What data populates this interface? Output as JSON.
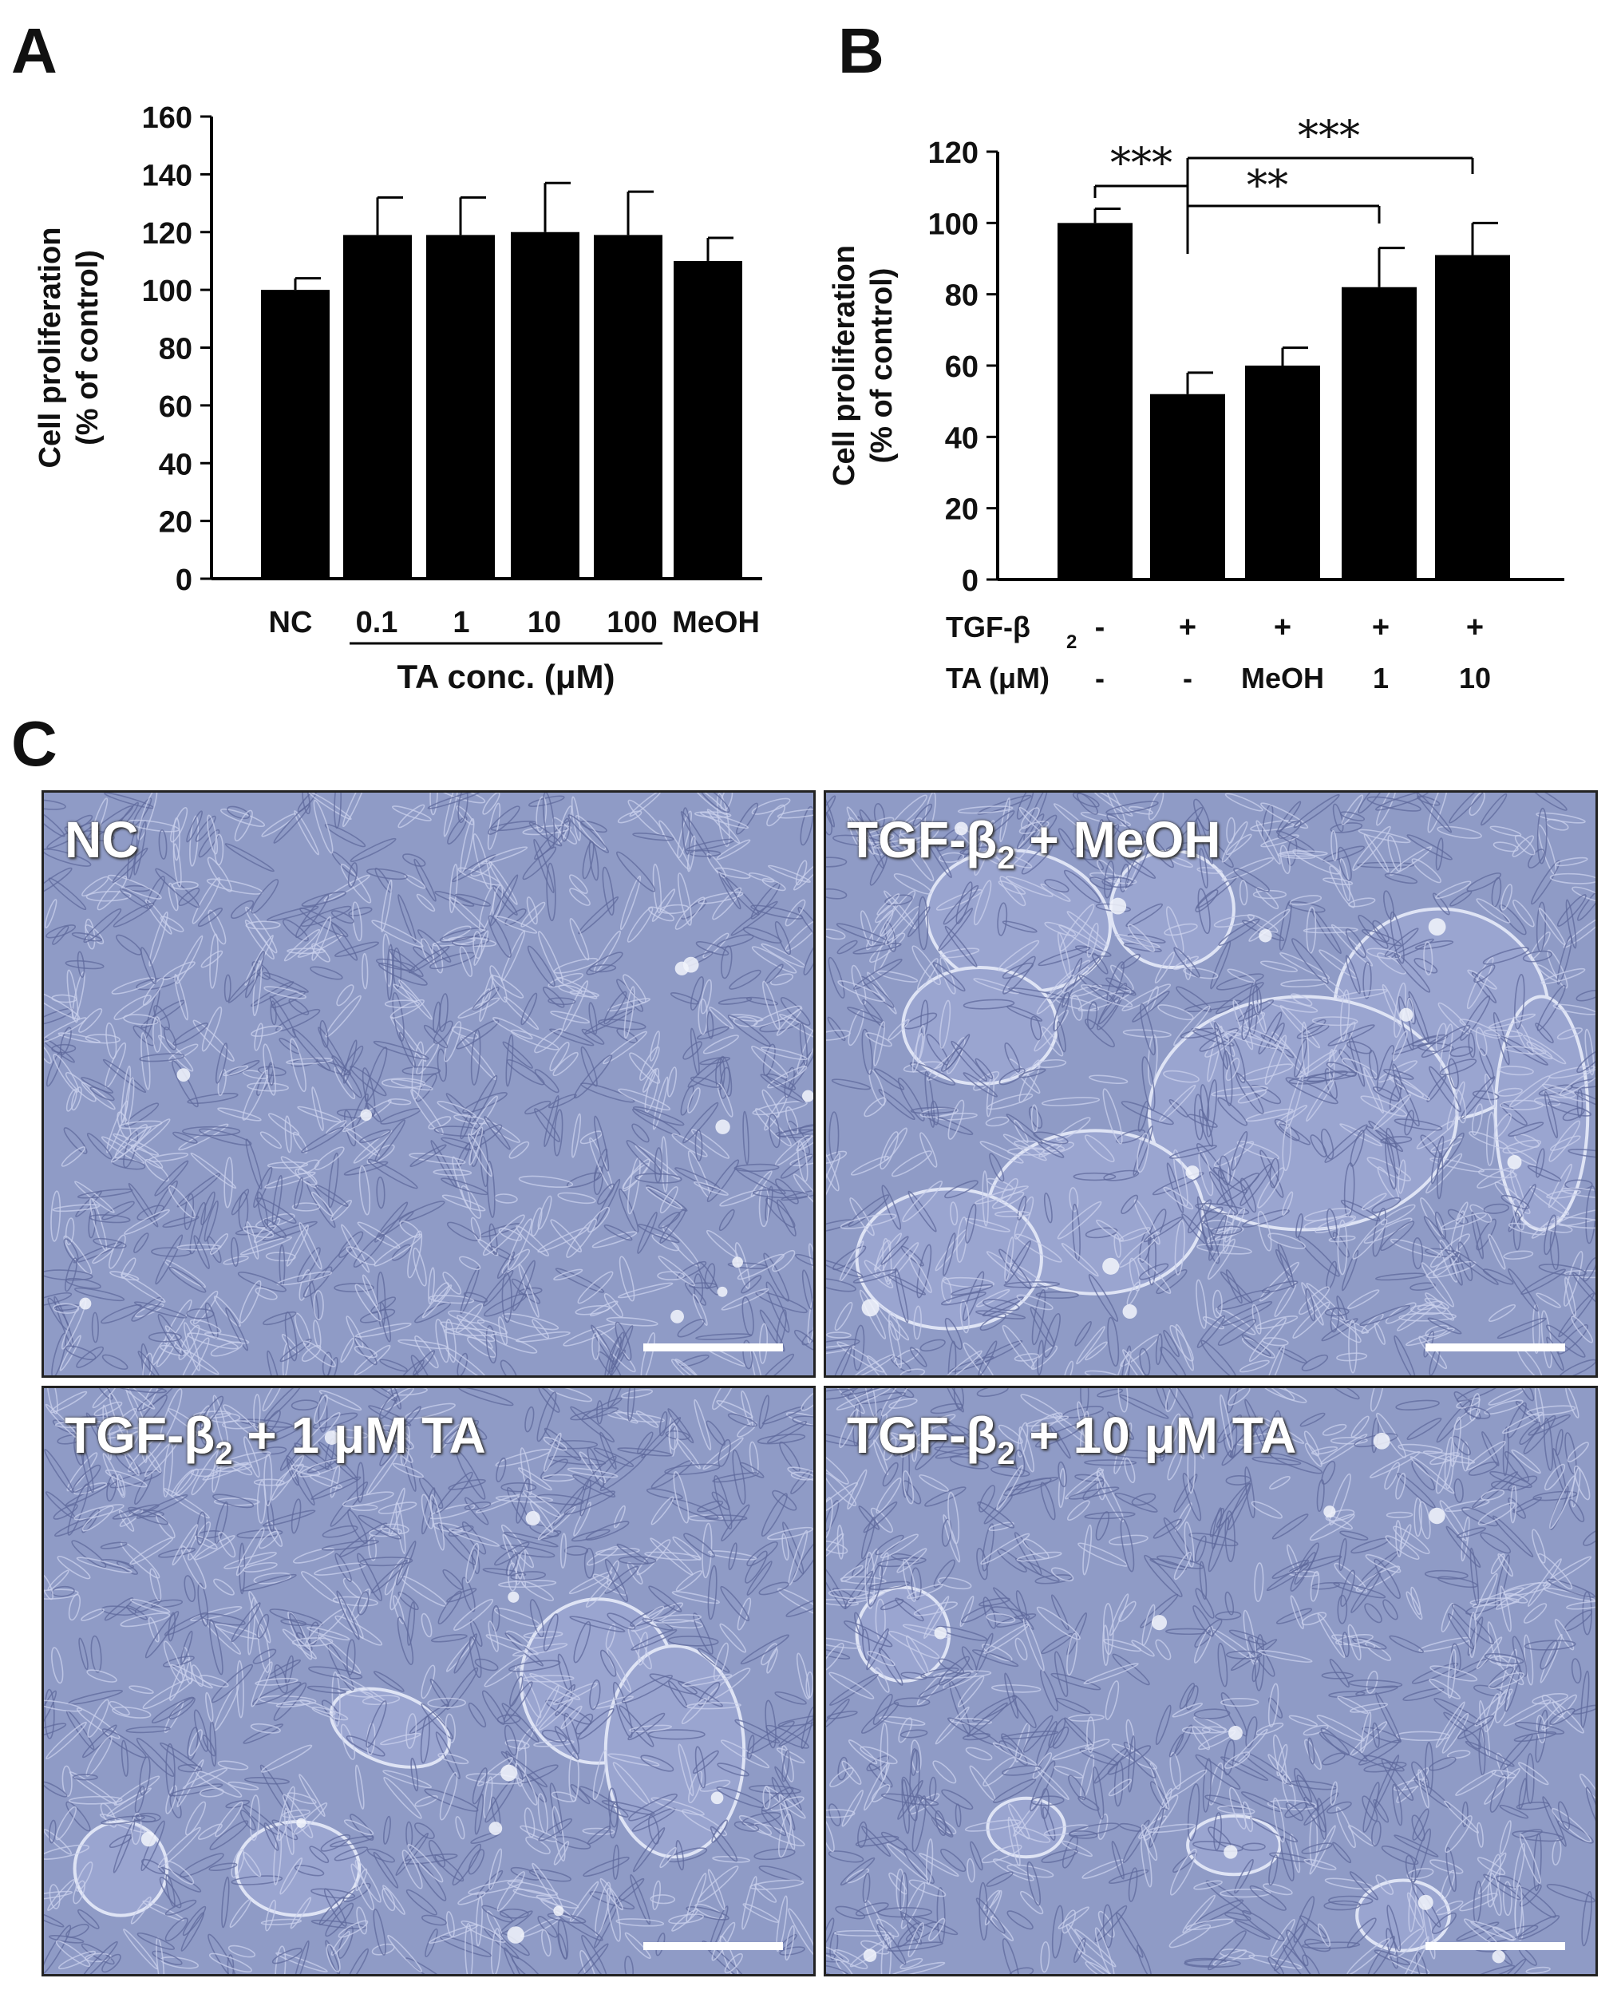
{
  "panels": {
    "a": "A",
    "b": "B",
    "c": "C"
  },
  "chart_data": [
    {
      "type": "bar",
      "ylabel_line1": "Cell proliferation",
      "ylabel_line2": "(% of control)",
      "ylim": [
        0,
        160
      ],
      "yticks": [
        0,
        20,
        40,
        60,
        80,
        100,
        120,
        140,
        160
      ],
      "categories": [
        "NC",
        "0.1",
        "1",
        "10",
        "100",
        "MeOH"
      ],
      "values": [
        100,
        119,
        119,
        120,
        119,
        110
      ],
      "errors": [
        4,
        13,
        13,
        17,
        15,
        8
      ],
      "group_label": "TA conc. (μM)",
      "bar_color": "#000000"
    },
    {
      "type": "bar",
      "ylabel_line1": "Cell proliferation",
      "ylabel_line2": "(% of control)",
      "ylim": [
        0,
        120
      ],
      "yticks": [
        0,
        20,
        40,
        60,
        80,
        100,
        120
      ],
      "values": [
        100,
        52,
        60,
        82,
        91
      ],
      "errors": [
        4,
        6,
        5,
        11,
        9
      ],
      "row_labels": [
        "TGF-β",
        "TA (μM)"
      ],
      "tgf_row": [
        "-",
        "+",
        "+",
        "+",
        "+"
      ],
      "ta_row": [
        "-",
        "-",
        "MeOH",
        "1",
        "10"
      ],
      "significance": [
        "***",
        "**",
        "***"
      ],
      "bar_color": "#000000"
    }
  ],
  "images": [
    {
      "label": "NC"
    },
    {
      "label_prefix": "TGF-β",
      "label_sub": "2",
      "label_suffix": " + MeOH"
    },
    {
      "label_prefix": "TGF-β",
      "label_sub": "2",
      "label_suffix": " + 1 μM TA"
    },
    {
      "label_prefix": "TGF-β",
      "label_sub": "2",
      "label_suffix": " + 10 μM TA"
    }
  ]
}
